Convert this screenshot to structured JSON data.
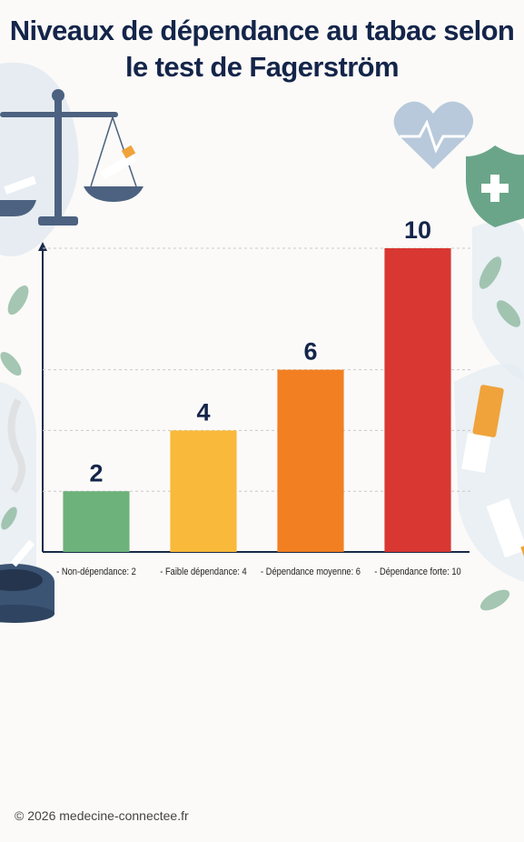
{
  "chart_data": {
    "type": "bar",
    "title": "Niveaux de dépendance au tabac selon le test de Fagerström",
    "categories": [
      "- Non-dépendance: 2",
      "- Faible dépendance: 4",
      "- Dépendance moyenne: 6",
      "- Dépendance forte: 10"
    ],
    "values": [
      2,
      4,
      6,
      10
    ],
    "colors": [
      "#6db27a",
      "#f9b93a",
      "#f27f22",
      "#d83732"
    ],
    "ylim": [
      0,
      10
    ]
  },
  "footer": "© 2026 medecine-connectee.fr"
}
